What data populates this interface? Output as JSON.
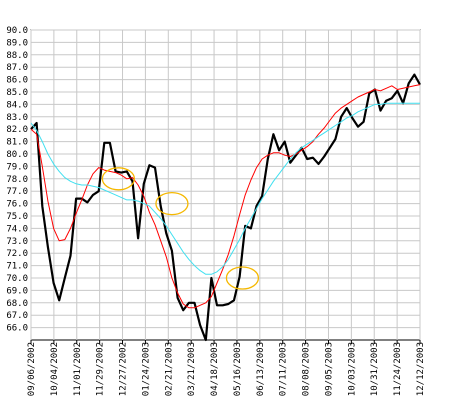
{
  "chart_data": {
    "type": "line",
    "title": "",
    "xlabel": "",
    "ylabel": "",
    "ylim": [
      65.0,
      90.0
    ],
    "grid": true,
    "y_ticks": [
      "66.0",
      "67.0",
      "68.0",
      "69.0",
      "70.0",
      "71.0",
      "72.0",
      "73.0",
      "74.0",
      "75.0",
      "76.0",
      "77.0",
      "78.0",
      "79.0",
      "80.0",
      "81.0",
      "82.0",
      "83.0",
      "84.0",
      "85.0",
      "86.0",
      "87.0",
      "88.0",
      "89.0",
      "90.0"
    ],
    "x_tick_labels": [
      "09/06/2002",
      "10/04/2002",
      "11/01/2002",
      "11/29/2002",
      "12/27/2002",
      "01/24/2003",
      "02/21/2003",
      "03/21/2003",
      "04/18/2003",
      "05/16/2003",
      "06/13/2003",
      "07/11/2003",
      "08/08/2003",
      "09/05/2003",
      "10/03/2003",
      "10/31/2003",
      "11/24/2003",
      "12/12/2003"
    ],
    "x_index_range": [
      0,
      65
    ],
    "series": [
      {
        "color": "#000000",
        "values": [
          82.0,
          82.5,
          75.8,
          72.5,
          69.6,
          68.2,
          70.0,
          71.8,
          76.4,
          76.4,
          76.1,
          76.7,
          77.0,
          80.9,
          80.9,
          78.6,
          78.5,
          78.6,
          77.8,
          73.2,
          77.6,
          79.1,
          78.9,
          75.8,
          73.6,
          72.2,
          68.4,
          67.4,
          68.0,
          68.0,
          66.2,
          65.0,
          70.0,
          67.8,
          67.8,
          67.9,
          68.2,
          70.1,
          74.2,
          74.0,
          75.8,
          76.6,
          79.6,
          81.6,
          80.3,
          81.0,
          79.3,
          79.9,
          80.5,
          79.6,
          79.7,
          79.2,
          79.8,
          80.5,
          81.2,
          83.0,
          83.7,
          82.9,
          82.2,
          82.6,
          84.9,
          85.2,
          83.5,
          84.3,
          84.5,
          85.1,
          84.1,
          85.7,
          86.4,
          85.6
        ]
      },
      {
        "color": "#ff0000",
        "values": [
          82.0,
          81.6,
          79.0,
          76.2,
          74.0,
          73.0,
          73.1,
          74.0,
          75.2,
          76.3,
          77.5,
          78.4,
          78.9,
          78.7,
          78.6,
          78.5,
          78.3,
          78.0,
          78.1,
          77.5,
          76.6,
          75.3,
          74.3,
          73.0,
          71.7,
          70.0,
          68.8,
          67.9,
          67.6,
          67.6,
          67.8,
          68.0,
          68.5,
          69.6,
          70.7,
          71.9,
          73.4,
          75.1,
          76.7,
          77.9,
          78.9,
          79.6,
          79.9,
          80.1,
          80.1,
          79.9,
          79.8,
          80.0,
          80.3,
          80.6,
          81.0,
          81.6,
          82.1,
          82.7,
          83.3,
          83.7,
          84.0,
          84.3,
          84.6,
          84.8,
          85.0,
          85.2,
          85.1,
          85.3,
          85.5,
          85.2,
          85.3,
          85.4,
          85.5,
          85.6
        ]
      },
      {
        "color": "#40e0f0",
        "values": [
          82.5,
          81.9,
          81.0,
          80.0,
          79.2,
          78.6,
          78.1,
          77.8,
          77.6,
          77.5,
          77.5,
          77.4,
          77.3,
          77.1,
          76.9,
          76.7,
          76.5,
          76.3,
          76.3,
          76.2,
          76.0,
          75.8,
          75.3,
          74.8,
          74.2,
          73.5,
          72.8,
          72.1,
          71.5,
          71.0,
          70.6,
          70.3,
          70.3,
          70.5,
          70.9,
          71.5,
          72.3,
          73.1,
          74.0,
          74.8,
          75.6,
          76.4,
          77.1,
          77.8,
          78.4,
          79.0,
          79.6,
          80.1,
          80.5,
          80.8,
          81.1,
          81.4,
          81.7,
          82.0,
          82.3,
          82.6,
          82.9,
          83.1,
          83.4,
          83.6,
          83.8,
          84.0,
          84.0,
          84.1,
          84.1,
          84.1,
          84.1,
          84.1,
          84.1,
          84.1
        ]
      }
    ],
    "annotations": [
      {
        "type": "ellipse",
        "color": "#f5b800",
        "cx_index": 15.5,
        "cy": 78.0
      },
      {
        "type": "ellipse",
        "color": "#f5b800",
        "cx_index": 25.0,
        "cy": 76.0
      },
      {
        "type": "ellipse",
        "color": "#f5b800",
        "cx_index": 37.5,
        "cy": 70.0
      }
    ]
  }
}
